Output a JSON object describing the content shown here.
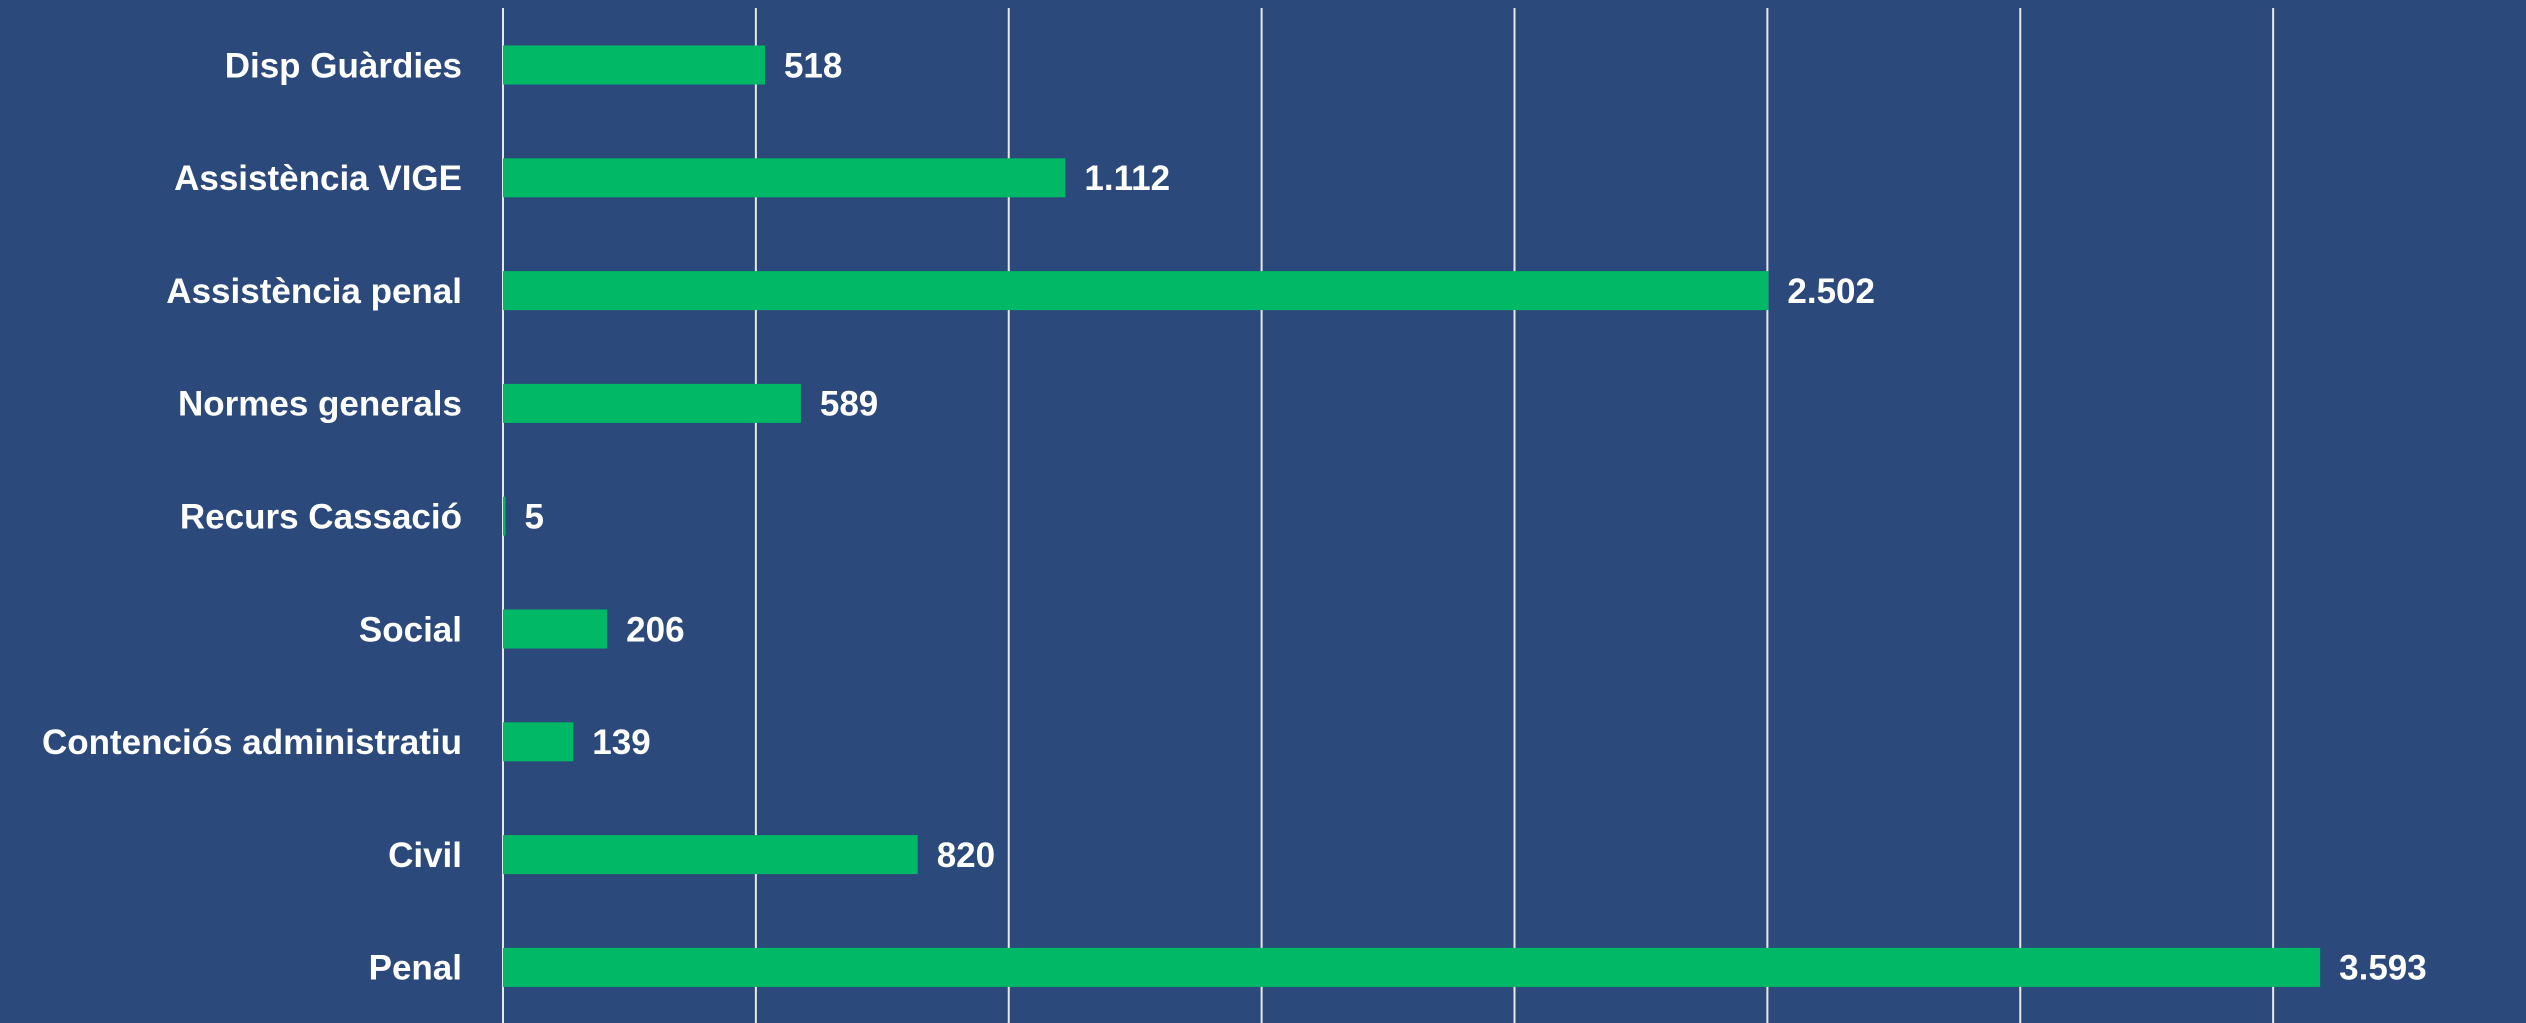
{
  "chart_data": {
    "type": "bar",
    "orientation": "horizontal",
    "categories": [
      "Disp Guàrdies",
      "Assistència VIGE",
      "Assistència penal",
      "Normes generals",
      "Recurs Cassació",
      "Social",
      "Contenciós administratiu",
      "Civil",
      "Penal"
    ],
    "values": [
      518,
      1112,
      2502,
      589,
      5,
      206,
      139,
      820,
      3593
    ],
    "value_labels": [
      "518",
      "1.112",
      "2.502",
      "589",
      "5",
      "206",
      "139",
      "820",
      "3.593"
    ],
    "color": "#00b865",
    "xlim": [
      0,
      4000
    ],
    "xticks": [
      0,
      500,
      1000,
      1500,
      2000,
      2500,
      3000,
      3500
    ],
    "grid": true
  }
}
